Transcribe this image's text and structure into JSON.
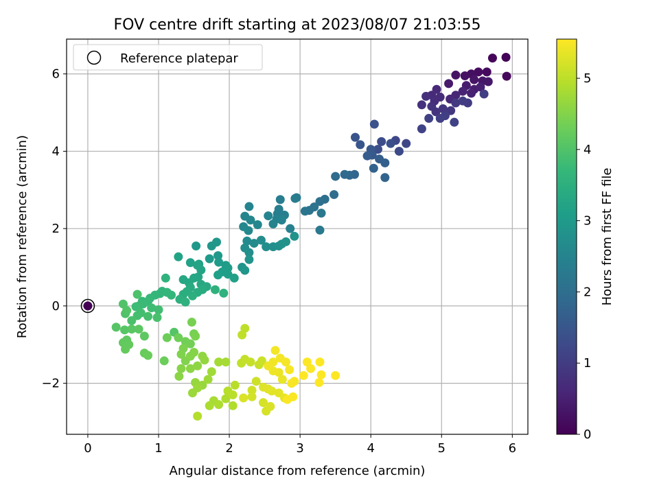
{
  "chart_data": {
    "type": "scatter",
    "title": "FOV centre drift starting at 2023/08/07 21:03:55",
    "xlabel": "Angular distance from reference (arcmin)",
    "ylabel": "Rotation from reference (arcmin)",
    "xlim": [
      -0.3,
      6.22
    ],
    "ylim": [
      -3.32,
      6.9
    ],
    "xticks": [
      0,
      1,
      2,
      3,
      4,
      5,
      6
    ],
    "yticks": [
      -2,
      0,
      2,
      4,
      6
    ],
    "ytick_labels": [
      "−2",
      "0",
      "2",
      "4",
      "6"
    ],
    "grid": true,
    "legend": {
      "position": "top-left",
      "entries": [
        "Reference platepar"
      ]
    },
    "reference_point": {
      "x": 0,
      "y": 0,
      "label": "Reference platepar"
    },
    "colorbar": {
      "label": "Hours from first FF file",
      "min": 0,
      "max": 5.55,
      "ticks": [
        0,
        1,
        2,
        3,
        4,
        5
      ],
      "colormap": "viridis",
      "stops": [
        "#440154",
        "#482878",
        "#3e4989",
        "#31688e",
        "#26828e",
        "#1f9e89",
        "#35b779",
        "#6ece58",
        "#b5de2b",
        "#fde725"
      ]
    },
    "points": [
      [
        5.91,
        6.43,
        0.05
      ],
      [
        5.72,
        6.41,
        0.08
      ],
      [
        5.92,
        5.94,
        0.12
      ],
      [
        5.64,
        6.05,
        0.15
      ],
      [
        5.52,
        6.05,
        0.18
      ],
      [
        5.42,
        6.0,
        0.22
      ],
      [
        5.33,
        5.95,
        0.25
      ],
      [
        5.2,
        5.97,
        0.28
      ],
      [
        5.46,
        5.85,
        0.31
      ],
      [
        5.58,
        5.82,
        0.34
      ],
      [
        5.66,
        5.8,
        0.37
      ],
      [
        5.1,
        5.75,
        0.4
      ],
      [
        5.35,
        5.7,
        0.43
      ],
      [
        5.46,
        5.6,
        0.46
      ],
      [
        5.55,
        5.66,
        0.49
      ],
      [
        5.42,
        5.5,
        0.52
      ],
      [
        5.3,
        5.55,
        0.55
      ],
      [
        5.2,
        5.45,
        0.58
      ],
      [
        5.12,
        5.35,
        0.61
      ],
      [
        4.93,
        5.6,
        0.64
      ],
      [
        4.86,
        5.45,
        0.67
      ],
      [
        4.98,
        5.4,
        0.7
      ],
      [
        4.9,
        5.3,
        0.73
      ],
      [
        4.78,
        5.42,
        0.76
      ],
      [
        4.72,
        5.2,
        0.79
      ],
      [
        4.86,
        5.16,
        0.82
      ],
      [
        4.92,
        5.02,
        0.85
      ],
      [
        5.02,
        5.1,
        0.88
      ],
      [
        5.13,
        5.05,
        0.91
      ],
      [
        5.2,
        5.25,
        0.94
      ],
      [
        5.37,
        5.25,
        0.97
      ],
      [
        5.3,
        5.3,
        1.0
      ],
      [
        5.6,
        5.48,
        1.02
      ],
      [
        5.05,
        4.92,
        1.04
      ],
      [
        4.98,
        4.85,
        1.06
      ],
      [
        4.82,
        4.85,
        1.08
      ],
      [
        5.18,
        4.75,
        1.1
      ],
      [
        4.72,
        4.58,
        1.12
      ],
      [
        4.5,
        4.2,
        1.18
      ],
      [
        4.35,
        4.28,
        1.22
      ],
      [
        4.4,
        4.0,
        1.26
      ],
      [
        4.15,
        4.25,
        1.3
      ],
      [
        4.1,
        4.05,
        1.34
      ],
      [
        4.28,
        4.2,
        1.38
      ],
      [
        4.05,
        4.7,
        1.42
      ],
      [
        3.78,
        4.36,
        1.46
      ],
      [
        3.85,
        4.17,
        1.5
      ],
      [
        4.0,
        4.05,
        1.54
      ],
      [
        4.02,
        3.9,
        1.58
      ],
      [
        3.95,
        3.88,
        1.62
      ],
      [
        4.12,
        3.8,
        1.66
      ],
      [
        4.2,
        3.7,
        1.7
      ],
      [
        4.04,
        3.56,
        1.74
      ],
      [
        4.2,
        3.32,
        1.78
      ],
      [
        3.77,
        3.4,
        1.82
      ],
      [
        3.7,
        3.38,
        1.86
      ],
      [
        3.63,
        3.4,
        1.9
      ],
      [
        3.5,
        3.35,
        1.94
      ],
      [
        3.48,
        2.88,
        1.98
      ],
      [
        3.35,
        2.76,
        2.02
      ],
      [
        3.28,
        2.7,
        2.06
      ],
      [
        3.2,
        2.56,
        2.1
      ],
      [
        3.13,
        2.47,
        2.14
      ],
      [
        3.07,
        2.45,
        2.18
      ],
      [
        3.3,
        2.4,
        2.22
      ],
      [
        3.28,
        1.96,
        2.26
      ],
      [
        2.95,
        2.8,
        2.3
      ],
      [
        2.93,
        2.78,
        2.32
      ],
      [
        2.72,
        2.75,
        2.34
      ],
      [
        2.7,
        2.5,
        2.36
      ],
      [
        2.68,
        2.38,
        2.38
      ],
      [
        2.78,
        2.35,
        2.4
      ],
      [
        2.86,
        2.0,
        2.42
      ],
      [
        2.67,
        2.25,
        2.44
      ],
      [
        2.74,
        2.22,
        2.46
      ],
      [
        2.62,
        2.12,
        2.48
      ],
      [
        2.55,
        2.33,
        2.5
      ],
      [
        2.28,
        2.57,
        2.52
      ],
      [
        2.22,
        2.32,
        2.54
      ],
      [
        2.3,
        2.22,
        2.56
      ],
      [
        2.4,
        2.1,
        2.58
      ],
      [
        2.2,
        2.05,
        2.6
      ],
      [
        2.27,
        1.95,
        2.62
      ],
      [
        2.25,
        1.68,
        2.64
      ],
      [
        2.35,
        1.62,
        2.66
      ],
      [
        2.45,
        1.7,
        2.68
      ],
      [
        2.22,
        1.5,
        2.7
      ],
      [
        2.28,
        1.38,
        2.72
      ],
      [
        2.52,
        1.53,
        2.74
      ],
      [
        2.62,
        1.53,
        2.76
      ],
      [
        2.7,
        1.55,
        2.78
      ],
      [
        2.74,
        1.6,
        2.8
      ],
      [
        2.8,
        1.66,
        2.82
      ],
      [
        2.92,
        1.8,
        2.84
      ],
      [
        2.28,
        1.2,
        2.86
      ],
      [
        2.18,
        1.0,
        2.88
      ],
      [
        2.22,
        0.92,
        2.9
      ],
      [
        1.82,
        1.65,
        2.92
      ],
      [
        1.75,
        1.55,
        2.94
      ],
      [
        1.53,
        1.55,
        2.96
      ],
      [
        1.84,
        1.3,
        2.98
      ],
      [
        1.72,
        1.22,
        3.0
      ],
      [
        1.85,
        1.13,
        3.02
      ],
      [
        1.95,
        1.05,
        3.04
      ],
      [
        1.98,
        0.98,
        3.06
      ],
      [
        1.9,
        0.88,
        3.08
      ],
      [
        1.84,
        0.8,
        3.1
      ],
      [
        1.98,
        0.82,
        3.12
      ],
      [
        2.07,
        0.72,
        3.14
      ],
      [
        1.57,
        1.08,
        3.16
      ],
      [
        1.45,
        1.12,
        3.18
      ],
      [
        1.28,
        1.27,
        3.2
      ],
      [
        1.55,
        1.05,
        3.22
      ],
      [
        1.6,
        0.93,
        3.24
      ],
      [
        1.56,
        0.75,
        3.26
      ],
      [
        1.5,
        0.72,
        3.28
      ],
      [
        1.35,
        0.68,
        3.3
      ],
      [
        1.43,
        0.6,
        3.32
      ],
      [
        1.6,
        0.56,
        3.34
      ],
      [
        1.68,
        0.5,
        3.36
      ],
      [
        1.45,
        0.48,
        3.38
      ],
      [
        1.62,
        0.42,
        3.4
      ],
      [
        1.55,
        0.35,
        3.42
      ],
      [
        1.4,
        0.37,
        3.44
      ],
      [
        1.35,
        0.3,
        3.46
      ],
      [
        1.48,
        0.26,
        3.48
      ],
      [
        1.3,
        0.17,
        3.5
      ],
      [
        1.38,
        0.1,
        3.52
      ],
      [
        1.8,
        0.42,
        3.54
      ],
      [
        1.92,
        0.33,
        3.56
      ],
      [
        1.1,
        0.72,
        3.58
      ],
      [
        1.05,
        0.38,
        3.6
      ],
      [
        1.02,
        0.32,
        3.62
      ],
      [
        1.12,
        0.35,
        3.64
      ],
      [
        1.18,
        0.28,
        3.66
      ],
      [
        0.95,
        0.28,
        3.68
      ],
      [
        0.88,
        0.2,
        3.7
      ],
      [
        0.77,
        0.12,
        3.72
      ],
      [
        0.85,
        0.12,
        3.74
      ],
      [
        0.78,
        0.05,
        3.76
      ],
      [
        0.72,
        0.0,
        3.78
      ],
      [
        0.68,
        -0.02,
        3.8
      ],
      [
        0.9,
        -0.05,
        3.82
      ],
      [
        1.0,
        -0.1,
        3.84
      ],
      [
        0.75,
        -0.18,
        3.86
      ],
      [
        0.7,
        -0.25,
        3.88
      ],
      [
        0.85,
        -0.27,
        3.9
      ],
      [
        0.98,
        -0.3,
        3.92
      ],
      [
        0.62,
        -0.38,
        3.94
      ],
      [
        0.7,
        0.3,
        3.96
      ],
      [
        0.53,
        -0.2,
        3.98
      ],
      [
        0.5,
        0.05,
        4.0
      ],
      [
        0.55,
        -0.12,
        4.02
      ],
      [
        1.22,
        -0.68,
        4.04
      ],
      [
        0.4,
        -0.55,
        4.06
      ],
      [
        0.52,
        -0.62,
        4.08
      ],
      [
        0.62,
        -0.6,
        4.1
      ],
      [
        0.72,
        -0.6,
        4.12
      ],
      [
        0.8,
        -0.78,
        4.14
      ],
      [
        0.55,
        -0.88,
        4.16
      ],
      [
        0.5,
        -0.95,
        4.18
      ],
      [
        0.58,
        -1.0,
        4.2
      ],
      [
        0.53,
        -1.12,
        4.22
      ],
      [
        0.8,
        -1.22,
        4.24
      ],
      [
        0.85,
        -1.28,
        4.26
      ],
      [
        1.08,
        -1.42,
        4.28
      ],
      [
        1.12,
        -0.82,
        4.3
      ],
      [
        1.28,
        -0.82,
        4.32
      ],
      [
        1.38,
        -0.92,
        4.34
      ],
      [
        1.45,
        -0.98,
        4.36
      ],
      [
        1.5,
        -0.72,
        4.38
      ],
      [
        1.47,
        -0.42,
        4.4
      ],
      [
        1.52,
        -0.78,
        4.42
      ],
      [
        1.35,
        -1.1,
        4.44
      ],
      [
        1.32,
        -1.25,
        4.46
      ],
      [
        1.38,
        -1.42,
        4.48
      ],
      [
        1.45,
        -1.3,
        4.5
      ],
      [
        1.5,
        -1.2,
        4.52
      ],
      [
        1.32,
        -1.62,
        4.54
      ],
      [
        1.29,
        -1.82,
        4.56
      ],
      [
        1.45,
        -1.62,
        4.58
      ],
      [
        1.55,
        -1.55,
        4.6
      ],
      [
        1.62,
        -1.3,
        4.62
      ],
      [
        1.65,
        -1.4,
        4.64
      ],
      [
        1.52,
        -1.98,
        4.66
      ],
      [
        1.62,
        -2.05,
        4.68
      ],
      [
        1.48,
        -2.25,
        4.7
      ],
      [
        1.55,
        -2.12,
        4.72
      ],
      [
        1.7,
        -1.9,
        4.74
      ],
      [
        1.75,
        -1.7,
        4.76
      ],
      [
        1.85,
        -1.45,
        4.78
      ],
      [
        1.95,
        -1.45,
        4.8
      ],
      [
        1.78,
        -2.45,
        4.82
      ],
      [
        1.72,
        -2.58,
        4.84
      ],
      [
        1.85,
        -2.55,
        4.86
      ],
      [
        1.95,
        -2.4,
        4.88
      ],
      [
        2.05,
        -2.58,
        4.9
      ],
      [
        1.55,
        -2.85,
        4.92
      ],
      [
        1.98,
        -2.2,
        4.94
      ],
      [
        2.08,
        -2.05,
        4.96
      ],
      [
        2.05,
        -2.3,
        4.98
      ],
      [
        2.22,
        -0.58,
        5.0
      ],
      [
        2.18,
        -0.75,
        5.02
      ],
      [
        2.17,
        -1.48,
        5.04
      ],
      [
        2.22,
        -1.38,
        5.06
      ],
      [
        2.3,
        -1.45,
        5.08
      ],
      [
        2.42,
        -1.52,
        5.1
      ],
      [
        2.46,
        -1.42,
        5.12
      ],
      [
        2.38,
        -1.95,
        5.14
      ],
      [
        2.32,
        -2.18,
        5.16
      ],
      [
        2.32,
        -2.35,
        5.18
      ],
      [
        2.48,
        -2.5,
        5.2
      ],
      [
        2.52,
        -2.72,
        5.22
      ],
      [
        2.58,
        -2.6,
        5.24
      ],
      [
        2.2,
        -2.38,
        5.26
      ],
      [
        2.48,
        -2.1,
        5.28
      ],
      [
        2.55,
        -2.15,
        5.3
      ],
      [
        2.6,
        -2.2,
        5.32
      ],
      [
        2.7,
        -2.25,
        5.34
      ],
      [
        2.78,
        -2.38,
        5.36
      ],
      [
        2.75,
        -1.9,
        5.38
      ],
      [
        2.7,
        -1.72,
        5.4
      ],
      [
        2.62,
        -1.68,
        5.42
      ],
      [
        2.55,
        -1.55,
        5.44
      ],
      [
        2.62,
        -1.45,
        5.45
      ],
      [
        2.65,
        -1.15,
        5.46
      ],
      [
        2.72,
        -1.35,
        5.47
      ],
      [
        2.8,
        -1.45,
        5.48
      ],
      [
        2.92,
        -1.95,
        5.49
      ],
      [
        2.85,
        -1.65,
        5.5
      ],
      [
        2.88,
        -2.0,
        5.51
      ],
      [
        2.82,
        -2.42,
        5.52
      ],
      [
        2.9,
        -2.35,
        5.52
      ],
      [
        3.1,
        -1.45,
        5.53
      ],
      [
        3.15,
        -1.62,
        5.53
      ],
      [
        3.28,
        -1.45,
        5.54
      ],
      [
        3.3,
        -1.78,
        5.54
      ],
      [
        3.5,
        -1.8,
        5.55
      ],
      [
        3.27,
        -1.98,
        5.55
      ],
      [
        3.05,
        -1.8,
        5.55
      ]
    ]
  }
}
